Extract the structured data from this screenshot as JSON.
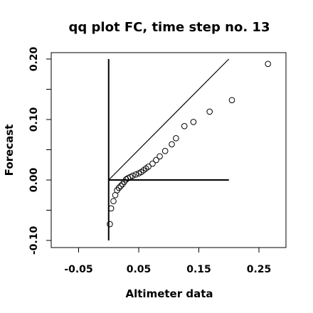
{
  "chart_data": {
    "type": "scatter",
    "title": "qq plot FC, time step no. 13",
    "xlabel": "Altimeter data",
    "ylabel": "Forecast",
    "xlim": [
      -0.12,
      0.3
    ],
    "ylim": [
      -0.11,
      0.21
    ],
    "x_ticks": [
      -0.05,
      0.05,
      0.15,
      0.25
    ],
    "x_tick_labels": [
      "-0.05",
      "0.05",
      "0.15",
      "0.25"
    ],
    "y_ticks": [
      -0.1,
      0.0,
      0.1,
      0.2
    ],
    "y_tick_labels": [
      "-0.10",
      "0.00",
      "0.10",
      "0.20"
    ],
    "grid": false,
    "points": [
      {
        "x": 0.002,
        "y": -0.073
      },
      {
        "x": 0.004,
        "y": -0.047
      },
      {
        "x": 0.008,
        "y": -0.035
      },
      {
        "x": 0.011,
        "y": -0.025
      },
      {
        "x": 0.014,
        "y": -0.017
      },
      {
        "x": 0.017,
        "y": -0.013
      },
      {
        "x": 0.02,
        "y": -0.01
      },
      {
        "x": 0.023,
        "y": -0.007
      },
      {
        "x": 0.026,
        "y": -0.003
      },
      {
        "x": 0.029,
        "y": 0.001
      },
      {
        "x": 0.032,
        "y": 0.003
      },
      {
        "x": 0.036,
        "y": 0.005
      },
      {
        "x": 0.04,
        "y": 0.007
      },
      {
        "x": 0.045,
        "y": 0.009
      },
      {
        "x": 0.05,
        "y": 0.011
      },
      {
        "x": 0.054,
        "y": 0.013
      },
      {
        "x": 0.058,
        "y": 0.016
      },
      {
        "x": 0.062,
        "y": 0.019
      },
      {
        "x": 0.066,
        "y": 0.022
      },
      {
        "x": 0.073,
        "y": 0.027
      },
      {
        "x": 0.079,
        "y": 0.033
      },
      {
        "x": 0.085,
        "y": 0.039
      },
      {
        "x": 0.094,
        "y": 0.048
      },
      {
        "x": 0.105,
        "y": 0.059
      },
      {
        "x": 0.112,
        "y": 0.069
      },
      {
        "x": 0.126,
        "y": 0.089
      },
      {
        "x": 0.141,
        "y": 0.096
      },
      {
        "x": 0.168,
        "y": 0.113
      },
      {
        "x": 0.205,
        "y": 0.132
      },
      {
        "x": 0.265,
        "y": 0.192
      }
    ],
    "reference_lines": [
      {
        "x": [
          0.0,
          0.2
        ],
        "y": [
          0.0,
          0.2
        ]
      },
      {
        "x": [
          0.0,
          0.0
        ],
        "y": [
          -0.1,
          0.2
        ]
      },
      {
        "x": [
          0.0,
          0.2
        ],
        "y": [
          0.0,
          0.0
        ]
      }
    ]
  }
}
